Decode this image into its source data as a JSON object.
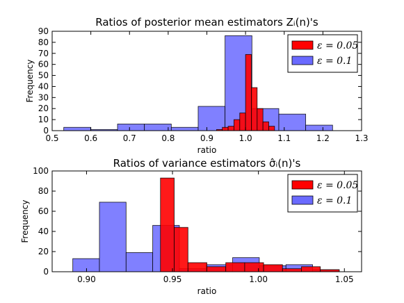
{
  "chart_data": [
    {
      "type": "histogram",
      "title": "Ratios of posterior mean estimators Zᵢ(n)'s",
      "xlabel": "ratio",
      "ylabel": "Frequency",
      "xlim": [
        0.5,
        1.3
      ],
      "ylim": [
        0,
        90
      ],
      "xticks": [
        0.5,
        0.6,
        0.7,
        0.8,
        0.9,
        1.0,
        1.1,
        1.2,
        1.3
      ],
      "xtick_labels": [
        "0.5",
        "0.6",
        "0.7",
        "0.8",
        "0.9",
        "1.0",
        "1.1",
        "1.2",
        "1.3"
      ],
      "yticks": [
        0,
        10,
        20,
        30,
        40,
        50,
        60,
        70,
        80,
        90
      ],
      "ytick_labels": [
        "0",
        "10",
        "20",
        "30",
        "40",
        "50",
        "60",
        "70",
        "80",
        "90"
      ],
      "grid": false,
      "legend": "top-right",
      "series": [
        {
          "name": "ε = 0.05",
          "color": "#ff0000",
          "bins": [
            {
              "x0": 0.925,
              "x1": 0.94,
              "count": 1
            },
            {
              "x0": 0.94,
              "x1": 0.955,
              "count": 3
            },
            {
              "x0": 0.955,
              "x1": 0.97,
              "count": 4
            },
            {
              "x0": 0.97,
              "x1": 0.985,
              "count": 10
            },
            {
              "x0": 0.985,
              "x1": 1.0,
              "count": 16
            },
            {
              "x0": 1.0,
              "x1": 1.015,
              "count": 69
            },
            {
              "x0": 1.015,
              "x1": 1.03,
              "count": 39
            },
            {
              "x0": 1.03,
              "x1": 1.045,
              "count": 20
            },
            {
              "x0": 1.045,
              "x1": 1.06,
              "count": 8
            },
            {
              "x0": 1.06,
              "x1": 1.075,
              "count": 4
            }
          ]
        },
        {
          "name": "ε = 0.1",
          "color": "#6a6aff",
          "bins": [
            {
              "x0": 0.53,
              "x1": 0.5995,
              "count": 3
            },
            {
              "x0": 0.5995,
              "x1": 0.669,
              "count": 1
            },
            {
              "x0": 0.669,
              "x1": 0.7385,
              "count": 6
            },
            {
              "x0": 0.7385,
              "x1": 0.808,
              "count": 6
            },
            {
              "x0": 0.808,
              "x1": 0.8775,
              "count": 3
            },
            {
              "x0": 0.8775,
              "x1": 0.947,
              "count": 22
            },
            {
              "x0": 0.947,
              "x1": 1.0165,
              "count": 86
            },
            {
              "x0": 1.0165,
              "x1": 1.086,
              "count": 20
            },
            {
              "x0": 1.086,
              "x1": 1.1555,
              "count": 15
            },
            {
              "x0": 1.1555,
              "x1": 1.225,
              "count": 5
            }
          ]
        }
      ]
    },
    {
      "type": "histogram",
      "title": "Ratios of variance estimators σ̂ᵢ(n)'s",
      "xlabel": "ratio",
      "ylabel": "Frequency",
      "xlim": [
        0.88,
        1.06
      ],
      "ylim": [
        0,
        100
      ],
      "xticks": [
        0.9,
        0.95,
        1.0,
        1.05
      ],
      "xtick_labels": [
        "0.90",
        "0.95",
        "1.00",
        "1.05"
      ],
      "yticks": [
        0,
        20,
        40,
        60,
        80,
        100
      ],
      "ytick_labels": [
        "0",
        "20",
        "40",
        "60",
        "80",
        "100"
      ],
      "grid": false,
      "legend": "top-right",
      "series": [
        {
          "name": "ε = 0.05",
          "color": "#ff0000",
          "bins": [
            {
              "x0": 0.943,
              "x1": 0.951,
              "count": 93
            },
            {
              "x0": 0.951,
              "x1": 0.959,
              "count": 44
            },
            {
              "x0": 0.959,
              "x1": 0.97,
              "count": 9
            },
            {
              "x0": 0.97,
              "x1": 0.981,
              "count": 5
            },
            {
              "x0": 0.981,
              "x1": 0.992,
              "count": 9
            },
            {
              "x0": 0.992,
              "x1": 1.003,
              "count": 9
            },
            {
              "x0": 1.003,
              "x1": 1.014,
              "count": 7
            },
            {
              "x0": 1.014,
              "x1": 1.025,
              "count": 3
            },
            {
              "x0": 1.025,
              "x1": 1.036,
              "count": 5
            },
            {
              "x0": 1.036,
              "x1": 1.047,
              "count": 2
            }
          ]
        },
        {
          "name": "ε = 0.1",
          "color": "#6a6aff",
          "bins": [
            {
              "x0": 0.892,
              "x1": 0.9075,
              "count": 13
            },
            {
              "x0": 0.9075,
              "x1": 0.923,
              "count": 69
            },
            {
              "x0": 0.923,
              "x1": 0.9385,
              "count": 19
            },
            {
              "x0": 0.9385,
              "x1": 0.954,
              "count": 46
            },
            {
              "x0": 0.954,
              "x1": 0.9695,
              "count": 3
            },
            {
              "x0": 0.9695,
              "x1": 0.985,
              "count": 7
            },
            {
              "x0": 0.985,
              "x1": 1.0005,
              "count": 14
            },
            {
              "x0": 1.0005,
              "x1": 1.016,
              "count": 6
            },
            {
              "x0": 1.016,
              "x1": 1.0315,
              "count": 7
            },
            {
              "x0": 1.0315,
              "x1": 1.047,
              "count": 2
            }
          ]
        }
      ]
    }
  ]
}
